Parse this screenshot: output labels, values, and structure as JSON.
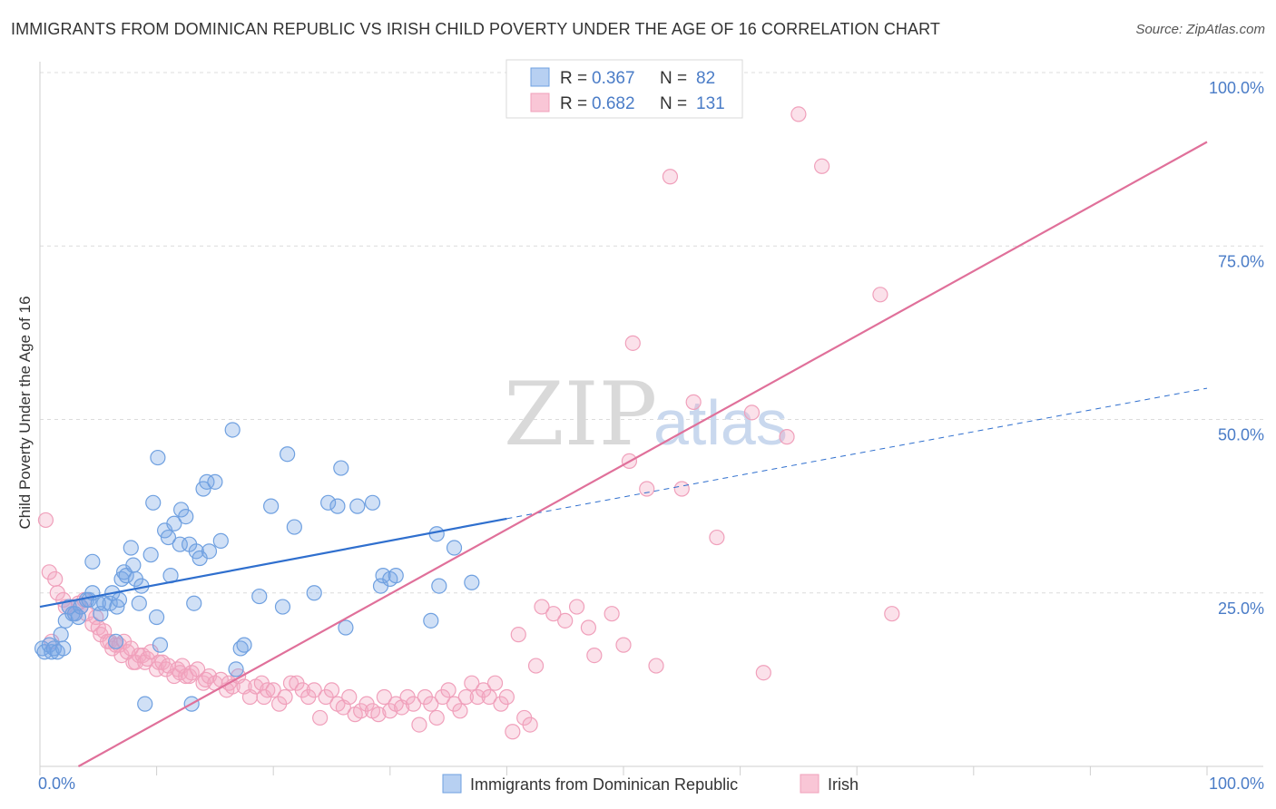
{
  "title": "IMMIGRANTS FROM DOMINICAN REPUBLIC VS IRISH CHILD POVERTY UNDER THE AGE OF 16 CORRELATION CHART",
  "source": "Source: ZipAtlas.com",
  "watermark": {
    "zip": "ZIP",
    "atlas": "atlas"
  },
  "colors": {
    "blue": "#6fa0e0",
    "blue_line": "#2f6fce",
    "pink": "#f0a0bb",
    "pink_line": "#e0709a",
    "tick": "#4a7cc7",
    "grid": "#dcdcdc"
  },
  "legend": {
    "rows": [
      {
        "r_label": "R = ",
        "r_value": "0.367",
        "n_label": "N = ",
        "n_value": "82"
      },
      {
        "r_label": "R = ",
        "r_value": "0.682",
        "n_label": "N = ",
        "n_value": "131"
      }
    ]
  },
  "chart_data": {
    "type": "scatter",
    "title": "IMMIGRANTS FROM DOMINICAN REPUBLIC VS IRISH CHILD POVERTY UNDER THE AGE OF 16 CORRELATION CHART",
    "xlabel": "",
    "ylabel": "Child Poverty Under the Age of 16",
    "xlim": [
      0,
      1
    ],
    "ylim": [
      0,
      1
    ],
    "x_tick_labels": [
      "0.0%",
      "100.0%"
    ],
    "y_ticks": [
      {
        "value": 0.25,
        "label": "25.0%"
      },
      {
        "value": 0.5,
        "label": "50.0%"
      },
      {
        "value": 0.75,
        "label": "75.0%"
      },
      {
        "value": 1.0,
        "label": "100.0%"
      }
    ],
    "grid": true,
    "legend_position": "top-center",
    "series": [
      {
        "name": "Immigrants from Dominican Republic",
        "color": "#6fa0e0",
        "r": 0.367,
        "n": 82,
        "trend": {
          "x0": 0.0,
          "y0": 0.23,
          "x1": 0.4,
          "y1": 0.357,
          "dash_to_x": 1.0,
          "dash_to_y": 0.545
        },
        "points": [
          [
            0.002,
            0.17
          ],
          [
            0.004,
            0.165
          ],
          [
            0.008,
            0.175
          ],
          [
            0.01,
            0.165
          ],
          [
            0.012,
            0.17
          ],
          [
            0.015,
            0.165
          ],
          [
            0.018,
            0.19
          ],
          [
            0.02,
            0.17
          ],
          [
            0.022,
            0.21
          ],
          [
            0.025,
            0.23
          ],
          [
            0.028,
            0.22
          ],
          [
            0.03,
            0.22
          ],
          [
            0.033,
            0.215
          ],
          [
            0.035,
            0.23
          ],
          [
            0.04,
            0.24
          ],
          [
            0.042,
            0.24
          ],
          [
            0.045,
            0.25
          ],
          [
            0.045,
            0.295
          ],
          [
            0.05,
            0.235
          ],
          [
            0.052,
            0.22
          ],
          [
            0.055,
            0.235
          ],
          [
            0.06,
            0.235
          ],
          [
            0.062,
            0.25
          ],
          [
            0.065,
            0.18
          ],
          [
            0.066,
            0.23
          ],
          [
            0.068,
            0.24
          ],
          [
            0.07,
            0.27
          ],
          [
            0.072,
            0.28
          ],
          [
            0.074,
            0.275
          ],
          [
            0.078,
            0.315
          ],
          [
            0.08,
            0.29
          ],
          [
            0.082,
            0.27
          ],
          [
            0.085,
            0.235
          ],
          [
            0.087,
            0.26
          ],
          [
            0.09,
            0.09
          ],
          [
            0.095,
            0.305
          ],
          [
            0.097,
            0.38
          ],
          [
            0.1,
            0.215
          ],
          [
            0.101,
            0.445
          ],
          [
            0.103,
            0.175
          ],
          [
            0.107,
            0.34
          ],
          [
            0.11,
            0.33
          ],
          [
            0.112,
            0.275
          ],
          [
            0.115,
            0.35
          ],
          [
            0.12,
            0.32
          ],
          [
            0.121,
            0.37
          ],
          [
            0.125,
            0.36
          ],
          [
            0.128,
            0.32
          ],
          [
            0.13,
            0.09
          ],
          [
            0.132,
            0.235
          ],
          [
            0.134,
            0.31
          ],
          [
            0.137,
            0.3
          ],
          [
            0.14,
            0.4
          ],
          [
            0.143,
            0.41
          ],
          [
            0.145,
            0.31
          ],
          [
            0.15,
            0.41
          ],
          [
            0.155,
            0.325
          ],
          [
            0.165,
            0.485
          ],
          [
            0.168,
            0.14
          ],
          [
            0.172,
            0.17
          ],
          [
            0.175,
            0.175
          ],
          [
            0.188,
            0.245
          ],
          [
            0.198,
            0.375
          ],
          [
            0.208,
            0.23
          ],
          [
            0.212,
            0.45
          ],
          [
            0.218,
            0.345
          ],
          [
            0.235,
            0.25
          ],
          [
            0.247,
            0.38
          ],
          [
            0.255,
            0.375
          ],
          [
            0.258,
            0.43
          ],
          [
            0.262,
            0.2
          ],
          [
            0.272,
            0.375
          ],
          [
            0.285,
            0.38
          ],
          [
            0.292,
            0.26
          ],
          [
            0.294,
            0.275
          ],
          [
            0.3,
            0.27
          ],
          [
            0.305,
            0.275
          ],
          [
            0.335,
            0.21
          ],
          [
            0.34,
            0.335
          ],
          [
            0.342,
            0.26
          ],
          [
            0.355,
            0.315
          ],
          [
            0.37,
            0.265
          ]
        ]
      },
      {
        "name": "Irish",
        "color": "#f0a0bb",
        "r": 0.682,
        "n": 131,
        "trend": {
          "x0": 0.033,
          "y0": 0.0,
          "x1": 1.0,
          "y1": 0.9
        },
        "points": [
          [
            0.005,
            0.355
          ],
          [
            0.008,
            0.28
          ],
          [
            0.01,
            0.18
          ],
          [
            0.013,
            0.27
          ],
          [
            0.015,
            0.25
          ],
          [
            0.02,
            0.24
          ],
          [
            0.022,
            0.23
          ],
          [
            0.025,
            0.23
          ],
          [
            0.03,
            0.22
          ],
          [
            0.033,
            0.235
          ],
          [
            0.035,
            0.23
          ],
          [
            0.038,
            0.24
          ],
          [
            0.04,
            0.22
          ],
          [
            0.045,
            0.205
          ],
          [
            0.048,
            0.215
          ],
          [
            0.05,
            0.2
          ],
          [
            0.052,
            0.19
          ],
          [
            0.055,
            0.195
          ],
          [
            0.058,
            0.18
          ],
          [
            0.06,
            0.18
          ],
          [
            0.062,
            0.17
          ],
          [
            0.065,
            0.175
          ],
          [
            0.068,
            0.175
          ],
          [
            0.07,
            0.16
          ],
          [
            0.072,
            0.18
          ],
          [
            0.075,
            0.165
          ],
          [
            0.078,
            0.17
          ],
          [
            0.08,
            0.15
          ],
          [
            0.082,
            0.15
          ],
          [
            0.085,
            0.16
          ],
          [
            0.088,
            0.16
          ],
          [
            0.09,
            0.15
          ],
          [
            0.092,
            0.155
          ],
          [
            0.095,
            0.165
          ],
          [
            0.1,
            0.14
          ],
          [
            0.102,
            0.15
          ],
          [
            0.105,
            0.15
          ],
          [
            0.108,
            0.14
          ],
          [
            0.11,
            0.145
          ],
          [
            0.115,
            0.13
          ],
          [
            0.118,
            0.14
          ],
          [
            0.12,
            0.135
          ],
          [
            0.122,
            0.145
          ],
          [
            0.125,
            0.13
          ],
          [
            0.128,
            0.13
          ],
          [
            0.13,
            0.135
          ],
          [
            0.135,
            0.14
          ],
          [
            0.14,
            0.12
          ],
          [
            0.142,
            0.125
          ],
          [
            0.145,
            0.13
          ],
          [
            0.15,
            0.12
          ],
          [
            0.155,
            0.125
          ],
          [
            0.16,
            0.11
          ],
          [
            0.162,
            0.12
          ],
          [
            0.165,
            0.115
          ],
          [
            0.17,
            0.13
          ],
          [
            0.175,
            0.115
          ],
          [
            0.18,
            0.1
          ],
          [
            0.185,
            0.115
          ],
          [
            0.19,
            0.12
          ],
          [
            0.192,
            0.1
          ],
          [
            0.195,
            0.11
          ],
          [
            0.2,
            0.11
          ],
          [
            0.205,
            0.09
          ],
          [
            0.21,
            0.1
          ],
          [
            0.215,
            0.12
          ],
          [
            0.22,
            0.12
          ],
          [
            0.225,
            0.11
          ],
          [
            0.23,
            0.1
          ],
          [
            0.235,
            0.11
          ],
          [
            0.24,
            0.07
          ],
          [
            0.245,
            0.1
          ],
          [
            0.25,
            0.11
          ],
          [
            0.255,
            0.09
          ],
          [
            0.26,
            0.085
          ],
          [
            0.265,
            0.1
          ],
          [
            0.27,
            0.075
          ],
          [
            0.275,
            0.08
          ],
          [
            0.28,
            0.09
          ],
          [
            0.285,
            0.08
          ],
          [
            0.29,
            0.075
          ],
          [
            0.295,
            0.1
          ],
          [
            0.3,
            0.08
          ],
          [
            0.305,
            0.09
          ],
          [
            0.31,
            0.085
          ],
          [
            0.315,
            0.1
          ],
          [
            0.32,
            0.09
          ],
          [
            0.325,
            0.06
          ],
          [
            0.33,
            0.1
          ],
          [
            0.335,
            0.09
          ],
          [
            0.34,
            0.07
          ],
          [
            0.345,
            0.1
          ],
          [
            0.35,
            0.11
          ],
          [
            0.355,
            0.09
          ],
          [
            0.36,
            0.08
          ],
          [
            0.365,
            0.1
          ],
          [
            0.37,
            0.12
          ],
          [
            0.375,
            0.1
          ],
          [
            0.38,
            0.11
          ],
          [
            0.385,
            0.1
          ],
          [
            0.39,
            0.12
          ],
          [
            0.395,
            0.09
          ],
          [
            0.4,
            0.1
          ],
          [
            0.405,
            0.05
          ],
          [
            0.41,
            0.19
          ],
          [
            0.415,
            0.07
          ],
          [
            0.42,
            0.06
          ],
          [
            0.425,
            0.145
          ],
          [
            0.43,
            0.23
          ],
          [
            0.44,
            0.22
          ],
          [
            0.45,
            0.21
          ],
          [
            0.46,
            0.23
          ],
          [
            0.47,
            0.2
          ],
          [
            0.475,
            0.16
          ],
          [
            0.49,
            0.22
          ],
          [
            0.5,
            0.175
          ],
          [
            0.505,
            0.44
          ],
          [
            0.508,
            0.61
          ],
          [
            0.52,
            0.4
          ],
          [
            0.528,
            0.145
          ],
          [
            0.54,
            0.85
          ],
          [
            0.55,
            0.4
          ],
          [
            0.56,
            0.525
          ],
          [
            0.58,
            0.33
          ],
          [
            0.61,
            0.51
          ],
          [
            0.62,
            0.135
          ],
          [
            0.64,
            0.475
          ],
          [
            0.65,
            0.94
          ],
          [
            0.67,
            0.865
          ],
          [
            0.72,
            0.68
          ],
          [
            0.73,
            0.22
          ]
        ]
      }
    ]
  },
  "bottom_legend": [
    {
      "label": "Immigrants from Dominican Republic"
    },
    {
      "label": "Irish"
    }
  ]
}
